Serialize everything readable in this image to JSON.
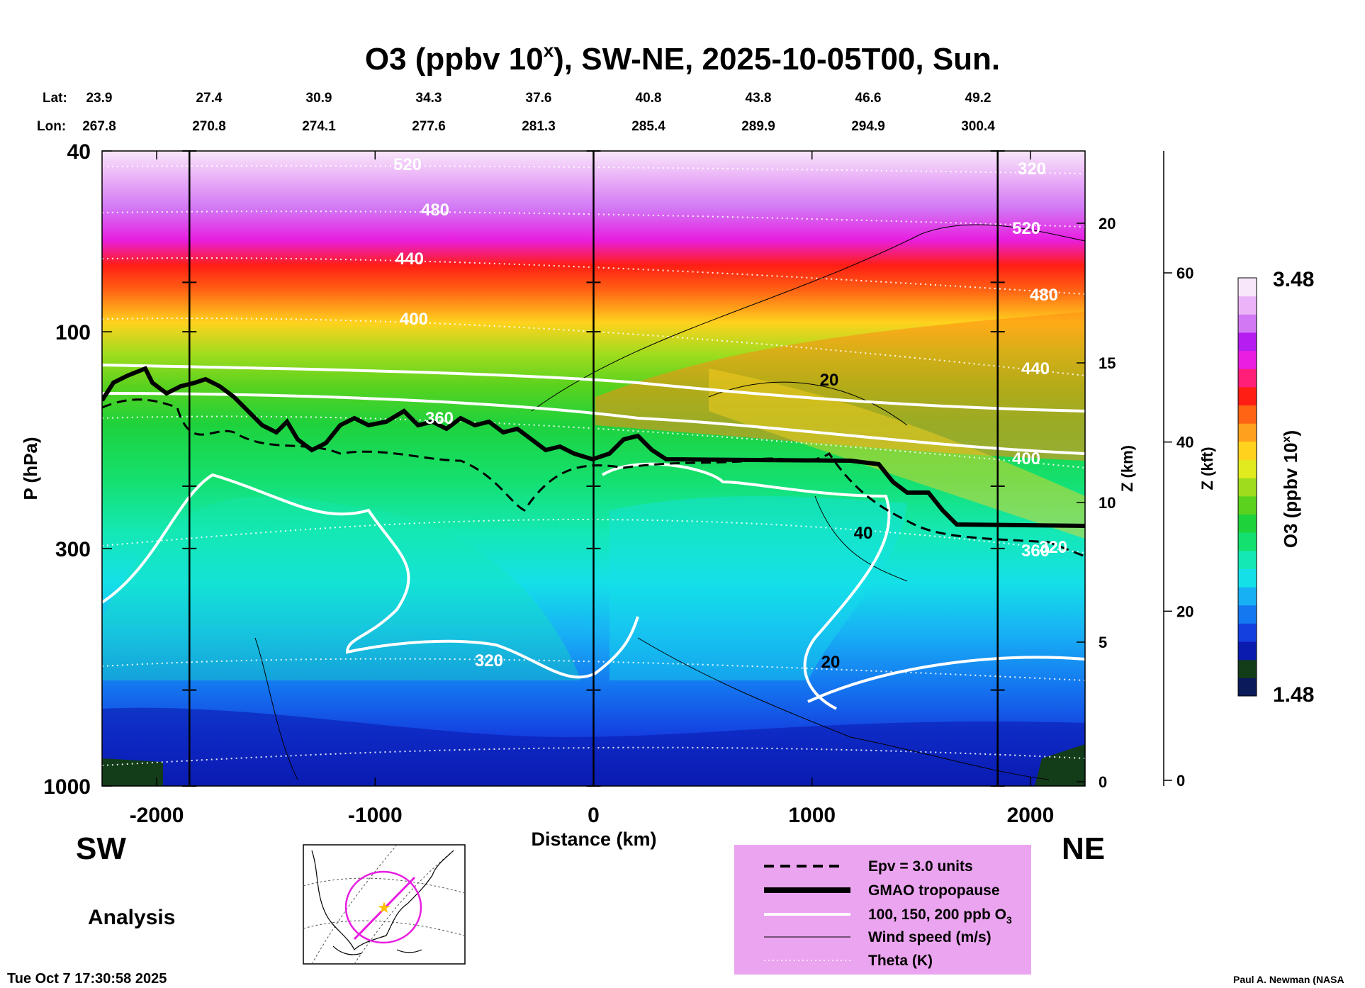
{
  "chart_data": {
    "type": "heatmap",
    "title": "O3 (ppbv 10",
    "title_sup": "x",
    "title_rest": "), SW-NE, 2025-10-05T00, Sun.",
    "lat_label": "Lat:",
    "lon_label": "Lon:",
    "lat_ticks": [
      "23.9",
      "27.4",
      "30.9",
      "34.3",
      "37.6",
      "40.8",
      "43.8",
      "46.6",
      "49.2"
    ],
    "lon_ticks": [
      "267.8",
      "270.8",
      "274.1",
      "277.6",
      "281.3",
      "285.4",
      "289.9",
      "294.9",
      "300.4"
    ],
    "xlabel": "Distance (km)",
    "xlim": [
      -2250,
      2250
    ],
    "x_ticks": [
      -2000,
      -1000,
      0,
      1000,
      2000
    ],
    "x_tick_labels": [
      "-2000",
      "-1000",
      "0",
      "1000",
      "2000"
    ],
    "ylabel": "P (hPa)",
    "y_ticks": [
      40,
      100,
      300,
      1000
    ],
    "y_tick_labels": [
      "40",
      "100",
      "300",
      "1000"
    ],
    "ylim": [
      1000,
      40
    ],
    "z_km_label": "Z (km)",
    "z_km_ticks": [
      0,
      5,
      10,
      15,
      20
    ],
    "z_km_tick_labels": [
      "0",
      "5",
      "10",
      "15",
      "20"
    ],
    "z_kft_label": "Z (kft)",
    "z_kft_ticks": [
      0,
      20,
      40,
      60
    ],
    "z_kft_tick_labels": [
      "0",
      "20",
      "40",
      "60"
    ],
    "colorbar": {
      "label": "O3 (ppbv 10",
      "label_sup": "x",
      "label_end": ")",
      "min": 1.48,
      "max": 3.48,
      "min_label": "1.48",
      "max_label": "3.48",
      "colors": [
        "#0b1a5a",
        "#133c19",
        "#0a1bb0",
        "#1440e0",
        "#1478f0",
        "#18b0f5",
        "#14e0e8",
        "#14e8b4",
        "#14e070",
        "#1ed23c",
        "#5ad21e",
        "#a0dc1e",
        "#e0ea1e",
        "#ffd21e",
        "#ffa01e",
        "#ff6414",
        "#ff1e14",
        "#ff1e78",
        "#e81ee0",
        "#b41ef0",
        "#d278f5",
        "#ebb4f8",
        "#f8e6fa"
      ]
    },
    "theta_labels": [
      "520",
      "480",
      "440",
      "400",
      "360",
      "320",
      "320",
      "520",
      "480",
      "440",
      "400",
      "360",
      "320"
    ],
    "wind_labels": [
      "20",
      "40",
      "20"
    ],
    "theta_levels_K": [
      320,
      360,
      400,
      440,
      480,
      520
    ],
    "wind_levels_ms": [
      20,
      40
    ],
    "vertical_marker_km": [
      -1850,
      0,
      1850
    ]
  },
  "labels": {
    "sw": "SW",
    "ne": "NE",
    "analysis": "Analysis",
    "timestamp": "Tue Oct  7 17:30:58 2025",
    "credit": "Paul A. Newman (NASA"
  },
  "legend": {
    "background": "#eba4ef",
    "items": [
      {
        "label": "Epv = 3.0 units"
      },
      {
        "label": "GMAO tropopause"
      },
      {
        "label": "100, 150, 200 ppb O",
        "sub": "3"
      },
      {
        "label": "Wind speed (m/s)"
      },
      {
        "label": "Theta (K)"
      }
    ]
  },
  "colors": {
    "map_track": "#e81ee0",
    "map_star": "#ffc000"
  }
}
